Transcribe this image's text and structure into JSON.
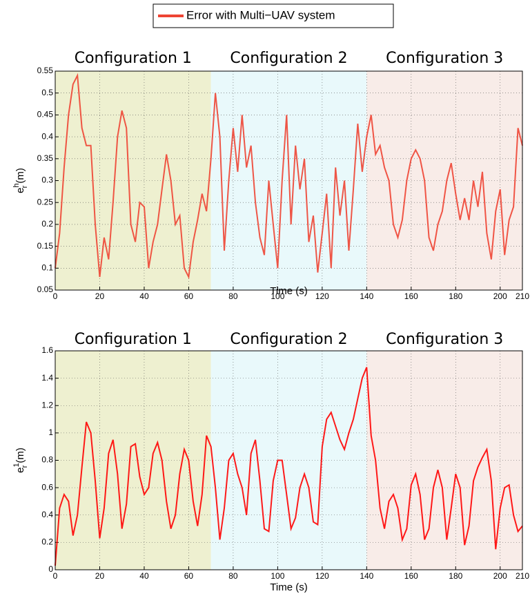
{
  "chart_data": [
    {
      "type": "line",
      "regions": [
        {
          "label": "Configuration 1",
          "start": 0,
          "end": 70,
          "color": "#eef0d0"
        },
        {
          "label": "Configuration 2",
          "start": 70,
          "end": 140,
          "color": "#e9f9fb"
        },
        {
          "label": "Configuration 3",
          "start": 140,
          "end": 210,
          "color": "#f8ece8"
        }
      ],
      "ylabel": {
        "base": "e",
        "sup": "h",
        "sub": "r",
        "unit": "(m)"
      },
      "xlabel": "Time (s)",
      "legend": "top-outside",
      "grid": true,
      "xlim": [
        0,
        210
      ],
      "xticks": [
        0,
        20,
        40,
        60,
        80,
        100,
        120,
        140,
        160,
        180,
        200,
        210
      ],
      "ylim": [
        0.05,
        0.55
      ],
      "yticks": [
        0.05,
        0.1,
        0.15,
        0.2,
        0.25,
        0.3,
        0.35,
        0.4,
        0.45,
        0.5,
        0.55
      ],
      "x": [
        0,
        2,
        4,
        6,
        8,
        10,
        12,
        14,
        16,
        18,
        20,
        22,
        24,
        26,
        28,
        30,
        32,
        34,
        36,
        38,
        40,
        42,
        44,
        46,
        48,
        50,
        52,
        54,
        56,
        58,
        60,
        62,
        64,
        66,
        68,
        70,
        72,
        74,
        76,
        78,
        80,
        82,
        84,
        86,
        88,
        90,
        92,
        94,
        96,
        98,
        100,
        102,
        104,
        106,
        108,
        110,
        112,
        114,
        116,
        118,
        120,
        122,
        124,
        126,
        128,
        130,
        132,
        134,
        136,
        138,
        140,
        142,
        144,
        146,
        148,
        150,
        152,
        154,
        156,
        158,
        160,
        162,
        164,
        166,
        168,
        170,
        172,
        174,
        176,
        178,
        180,
        182,
        184,
        186,
        188,
        190,
        192,
        194,
        196,
        198,
        200,
        202,
        204,
        206,
        208,
        210
      ],
      "series": [
        {
          "name": "Error with Multi−UAV system",
          "color": "#ee4433",
          "values": [
            0.1,
            0.18,
            0.33,
            0.45,
            0.52,
            0.54,
            0.42,
            0.38,
            0.38,
            0.2,
            0.08,
            0.17,
            0.12,
            0.25,
            0.4,
            0.46,
            0.42,
            0.2,
            0.16,
            0.25,
            0.24,
            0.1,
            0.16,
            0.2,
            0.28,
            0.36,
            0.3,
            0.2,
            0.22,
            0.1,
            0.08,
            0.16,
            0.21,
            0.27,
            0.23,
            0.35,
            0.5,
            0.4,
            0.14,
            0.3,
            0.42,
            0.32,
            0.45,
            0.33,
            0.38,
            0.25,
            0.17,
            0.13,
            0.3,
            0.2,
            0.1,
            0.3,
            0.45,
            0.2,
            0.38,
            0.28,
            0.35,
            0.16,
            0.22,
            0.09,
            0.18,
            0.27,
            0.1,
            0.33,
            0.22,
            0.3,
            0.14,
            0.28,
            0.43,
            0.32,
            0.4,
            0.45,
            0.36,
            0.38,
            0.33,
            0.3,
            0.2,
            0.17,
            0.21,
            0.3,
            0.35,
            0.37,
            0.35,
            0.3,
            0.17,
            0.14,
            0.2,
            0.23,
            0.3,
            0.34,
            0.27,
            0.21,
            0.26,
            0.21,
            0.3,
            0.24,
            0.32,
            0.18,
            0.12,
            0.23,
            0.28,
            0.13,
            0.21,
            0.24,
            0.42,
            0.38
          ]
        }
      ]
    },
    {
      "type": "line",
      "regions": [
        {
          "label": "Configuration 1",
          "start": 0,
          "end": 70,
          "color": "#eef0d0"
        },
        {
          "label": "Configuration 2",
          "start": 70,
          "end": 140,
          "color": "#e9f9fb"
        },
        {
          "label": "Configuration 3",
          "start": 140,
          "end": 210,
          "color": "#f8ece8"
        }
      ],
      "ylabel": {
        "base": "e",
        "sup": "1",
        "sub": "r",
        "unit": "(m)"
      },
      "xlabel": "Time (s)",
      "grid": true,
      "xlim": [
        0,
        210
      ],
      "xticks": [
        0,
        20,
        40,
        60,
        80,
        100,
        120,
        140,
        160,
        180,
        200,
        210
      ],
      "ylim": [
        0,
        1.6
      ],
      "yticks": [
        0,
        0.2,
        0.4,
        0.6,
        0.8,
        1,
        1.2,
        1.4,
        1.6
      ],
      "x": [
        0,
        2,
        4,
        6,
        8,
        10,
        12,
        14,
        16,
        18,
        20,
        22,
        24,
        26,
        28,
        30,
        32,
        34,
        36,
        38,
        40,
        42,
        44,
        46,
        48,
        50,
        52,
        54,
        56,
        58,
        60,
        62,
        64,
        66,
        68,
        70,
        72,
        74,
        76,
        78,
        80,
        82,
        84,
        86,
        88,
        90,
        92,
        94,
        96,
        98,
        100,
        102,
        104,
        106,
        108,
        110,
        112,
        114,
        116,
        118,
        120,
        122,
        124,
        126,
        128,
        130,
        132,
        134,
        136,
        138,
        140,
        142,
        144,
        146,
        148,
        150,
        152,
        154,
        156,
        158,
        160,
        162,
        164,
        166,
        168,
        170,
        172,
        174,
        176,
        178,
        180,
        182,
        184,
        186,
        188,
        190,
        192,
        194,
        196,
        198,
        200,
        202,
        204,
        206,
        208,
        210
      ],
      "series": [
        {
          "color": "#ff0000",
          "values": [
            0.03,
            0.45,
            0.55,
            0.5,
            0.25,
            0.4,
            0.75,
            1.08,
            1.0,
            0.65,
            0.23,
            0.45,
            0.85,
            0.95,
            0.7,
            0.3,
            0.48,
            0.9,
            0.92,
            0.68,
            0.55,
            0.6,
            0.85,
            0.93,
            0.8,
            0.5,
            0.3,
            0.4,
            0.7,
            0.88,
            0.8,
            0.5,
            0.32,
            0.55,
            0.98,
            0.9,
            0.6,
            0.22,
            0.45,
            0.8,
            0.85,
            0.7,
            0.6,
            0.4,
            0.85,
            0.95,
            0.65,
            0.3,
            0.28,
            0.65,
            0.8,
            0.8,
            0.55,
            0.3,
            0.38,
            0.6,
            0.7,
            0.6,
            0.35,
            0.33,
            0.9,
            1.1,
            1.15,
            1.05,
            0.95,
            0.88,
            1.0,
            1.1,
            1.25,
            1.4,
            1.48,
            0.98,
            0.8,
            0.45,
            0.3,
            0.5,
            0.55,
            0.45,
            0.22,
            0.3,
            0.62,
            0.7,
            0.55,
            0.22,
            0.3,
            0.6,
            0.73,
            0.6,
            0.22,
            0.45,
            0.7,
            0.6,
            0.18,
            0.32,
            0.65,
            0.75,
            0.82,
            0.88,
            0.65,
            0.15,
            0.45,
            0.6,
            0.62,
            0.4,
            0.28,
            0.32
          ]
        }
      ]
    }
  ]
}
